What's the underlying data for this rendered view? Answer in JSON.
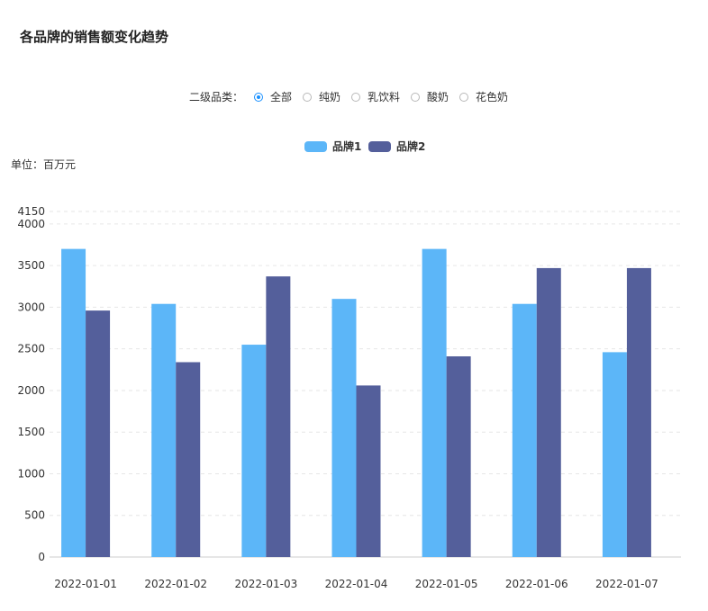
{
  "title": "各品牌的销售额变化趋势",
  "filter": {
    "label": "二级品类：",
    "options": [
      "全部",
      "纯奶",
      "乳饮料",
      "酸奶",
      "花色奶"
    ],
    "selected_index": 0
  },
  "unit": "单位：百万元",
  "colors": {
    "series1": "#5cb6f8",
    "series2": "#545f9b",
    "grid": "#e6e6e6",
    "axis": "#cccccc",
    "radio_active": "#1890ff"
  },
  "chart_data": {
    "type": "bar",
    "categories": [
      "2022-01-01",
      "2022-01-02",
      "2022-01-03",
      "2022-01-04",
      "2022-01-05",
      "2022-01-06",
      "2022-01-07"
    ],
    "series": [
      {
        "name": "品牌1",
        "values": [
          3700,
          3040,
          2550,
          3100,
          3700,
          3040,
          2460
        ]
      },
      {
        "name": "品牌2",
        "values": [
          2960,
          2340,
          3370,
          2060,
          2410,
          3470,
          3470
        ]
      }
    ],
    "ylim": [
      0,
      4150
    ],
    "yticks": [
      0,
      500,
      1000,
      1500,
      2000,
      2500,
      3000,
      3500,
      4000,
      4150
    ],
    "grid": true,
    "legend_position": "top-center",
    "title": "各品牌的销售额变化趋势",
    "ylabel": "单位：百万元"
  }
}
